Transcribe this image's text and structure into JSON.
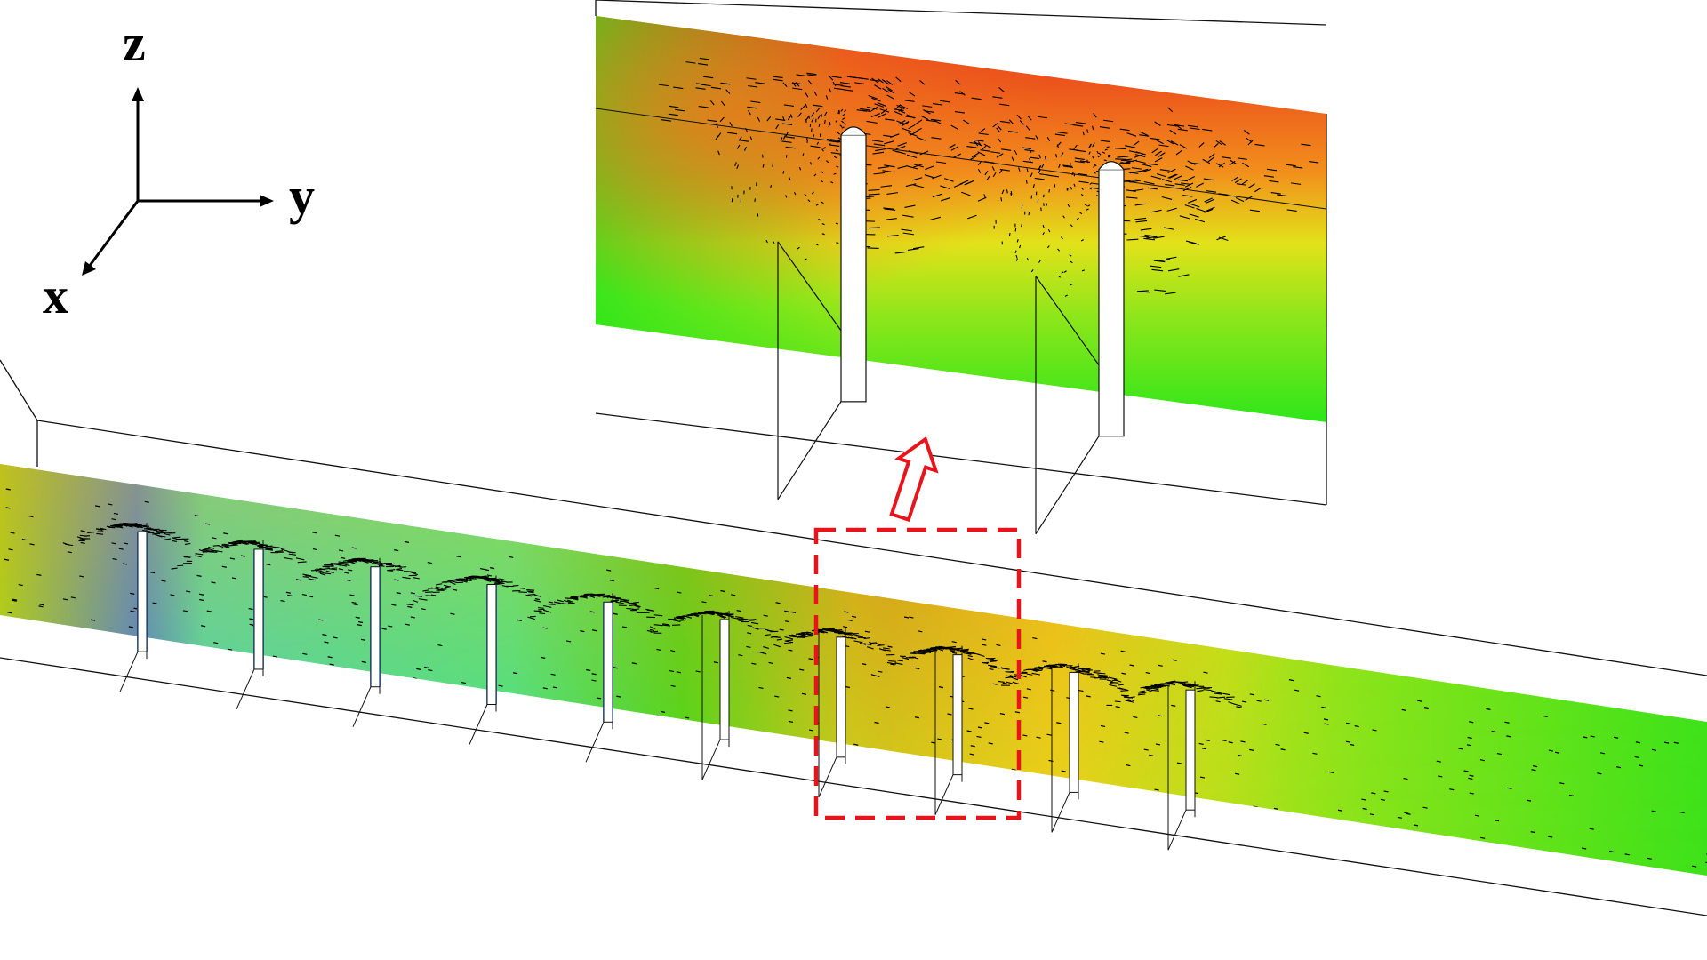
{
  "axes": {
    "z_label": "z",
    "y_label": "y",
    "x_label": "x"
  },
  "colors": {
    "callout_red": "#e8141c",
    "wireframe": "#111111",
    "field_high": "#e8321c",
    "field_mid_orange": "#f07a1c",
    "field_mid_yellow": "#f2e20a",
    "field_low_green": "#22e61a",
    "field_lowest_blue": "#1a6cff"
  },
  "scene": {
    "channel_baffle_count": 10,
    "zoom_baffle_count": 2,
    "highlighted_baffles": [
      7,
      8
    ]
  }
}
